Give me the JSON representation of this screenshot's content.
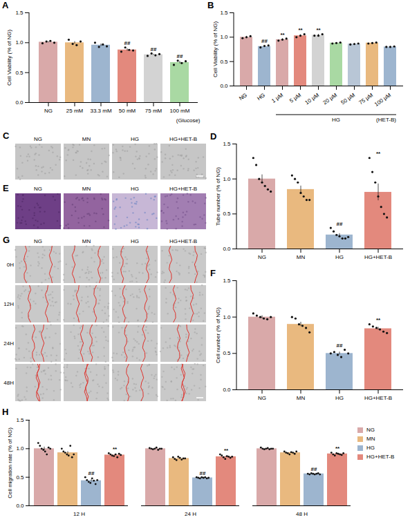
{
  "chart_data": [
    {
      "panel": "A",
      "type": "bar",
      "ylabel": "Cell Viability (% of NG)",
      "xlabel": "(Glucose)",
      "categories": [
        "NG",
        "25 mM",
        "33.3 mM",
        "50 mM",
        "75 mM",
        "100 mM"
      ],
      "values": [
        1.01,
        1.0,
        0.96,
        0.88,
        0.8,
        0.67
      ],
      "errors": [
        0.01,
        0.02,
        0.02,
        0.02,
        0.01,
        0.02
      ],
      "points": [
        [
          0.99,
          1.02,
          1.03,
          1.0
        ],
        [
          1.05,
          0.98,
          0.96,
          1.02
        ],
        [
          1.0,
          0.93,
          0.97,
          0.94
        ],
        [
          0.85,
          0.92,
          0.88,
          0.87
        ],
        [
          0.78,
          0.82,
          0.79,
          0.81
        ],
        [
          0.63,
          0.7,
          0.66,
          0.69
        ]
      ],
      "annotations": [
        null,
        null,
        null,
        "##",
        "##",
        "##"
      ],
      "colors": [
        "#d9a9a9",
        "#e9b97f",
        "#9db5cf",
        "#e3897d",
        "#d3d3d3",
        "#a9d9a3"
      ],
      "ylim": [
        0,
        1.5
      ],
      "yticks": [
        {
          "value": 0,
          "label": "0.0"
        },
        0.5,
        {
          "value": 1,
          "label": "1.0"
        },
        1.5
      ]
    },
    {
      "panel": "B",
      "type": "bar",
      "ylabel": "Cell Viability (% of NG)",
      "xlabel": "(HET-B)",
      "group": {
        "label": "HG",
        "from": "1 μM",
        "to": "100 μM"
      },
      "categories": [
        "NG",
        "HG",
        "1 μM",
        "5 μM",
        "10 μM",
        "20 μM",
        "50 μM",
        "75 μM",
        "100 μM"
      ],
      "values": [
        1.0,
        0.81,
        0.95,
        1.03,
        1.04,
        0.88,
        0.86,
        0.88,
        0.8
      ],
      "errors": [
        0.02,
        0.01,
        0.02,
        0.02,
        0.02,
        0.01,
        0.01,
        0.01,
        0.005
      ],
      "points": [
        [
          0.98,
          1.0,
          1.02
        ],
        [
          0.79,
          0.82,
          0.83
        ],
        [
          0.93,
          0.95,
          0.97
        ],
        [
          1.0,
          1.03,
          1.06
        ],
        [
          1.03,
          1.03,
          1.06
        ],
        [
          0.87,
          0.88,
          0.89
        ],
        [
          0.85,
          0.86,
          0.87
        ],
        [
          0.87,
          0.88,
          0.89
        ],
        [
          0.8,
          0.8,
          0.81
        ]
      ],
      "annotations": [
        null,
        "##",
        "**",
        "**",
        "**",
        null,
        null,
        null,
        null
      ],
      "colors": [
        "#d9a9a9",
        "#9db5cf",
        "#d9a9a9",
        "#e3897d",
        "#d3d3d3",
        "#a9d9a3",
        "#b8c6d6",
        "#e9b97f",
        "#9db5cf"
      ],
      "ylim": [
        0,
        1.5
      ],
      "yticks": [
        {
          "value": 0,
          "label": "0.0"
        },
        0.5,
        {
          "value": 1,
          "label": "1.0"
        },
        1.5
      ]
    },
    {
      "panel": "D",
      "type": "bar",
      "ylabel": "Tube number (% of NG)",
      "categories": [
        "NG",
        "MN",
        "HG",
        "HG+HET-B"
      ],
      "values": [
        1.0,
        0.85,
        0.2,
        0.81
      ],
      "errors": [
        0.06,
        0.05,
        0.02,
        0.12
      ],
      "points": [
        [
          1.3,
          1.2,
          1.0,
          0.95,
          0.9,
          0.85,
          0.82
        ],
        [
          1.05,
          1.0,
          0.95,
          0.8,
          0.75,
          0.7,
          0.7
        ],
        [
          0.3,
          0.25,
          0.2,
          0.18,
          0.15,
          0.15,
          0.17
        ],
        [
          1.3,
          1.1,
          0.95,
          0.75,
          0.6,
          0.5,
          0.45
        ]
      ],
      "annotations": [
        null,
        null,
        "##",
        "**"
      ],
      "colors": [
        "#d9a9a9",
        "#e9b97f",
        "#9db5cf",
        "#e3897d"
      ],
      "ylim": [
        0,
        1.5
      ],
      "yticks": [
        {
          "value": 0,
          "label": "0.0"
        },
        0.5,
        {
          "value": 1,
          "label": "1.0"
        },
        1.5
      ]
    },
    {
      "panel": "F",
      "type": "bar",
      "ylabel": "Cell number (% of NG)",
      "categories": [
        "NG",
        "MN",
        "HG",
        "HG+HET-B"
      ],
      "values": [
        1.0,
        0.9,
        0.5,
        0.84
      ],
      "errors": [
        0.02,
        0.03,
        0.02,
        0.02
      ],
      "points": [
        [
          1.05,
          1.02,
          1.0,
          0.98,
          0.97,
          1.0
        ],
        [
          1.0,
          0.98,
          0.9,
          0.88,
          0.85,
          0.79
        ],
        [
          0.5,
          0.52,
          0.48,
          0.45,
          0.55,
          0.5
        ],
        [
          0.9,
          0.87,
          0.85,
          0.83,
          0.8,
          0.78
        ]
      ],
      "annotations": [
        null,
        null,
        "##",
        "**"
      ],
      "colors": [
        "#d9a9a9",
        "#e9b97f",
        "#9db5cf",
        "#e3897d"
      ],
      "ylim": [
        0,
        1.5
      ],
      "yticks": [
        {
          "value": 0,
          "label": "0.0"
        },
        0.5,
        {
          "value": 1,
          "label": "1.0"
        },
        1.5
      ]
    },
    {
      "panel": "H",
      "type": "grouped_bar",
      "ylabel": "Cell migration rate (% of NG)",
      "legend": "right",
      "categories": [
        "12 H",
        "24 H",
        "48 H"
      ],
      "series": [
        {
          "name": "NG",
          "color": "#d9a9a9",
          "values": [
            1.0,
            1.0,
            1.0
          ],
          "errors": [
            0.03,
            0.005,
            0.004
          ],
          "points": [
            [
              1.1,
              1.05,
              1.0,
              0.98,
              0.95,
              0.9,
              1.02,
              1.0
            ],
            [
              1.01,
              1.0,
              0.99,
              1.0,
              1.02,
              0.98,
              1.0,
              1.0
            ],
            [
              1.02,
              1.0,
              0.99,
              1.0,
              1.01,
              0.99,
              1.0,
              1.0
            ]
          ],
          "annotations": [
            null,
            null,
            null
          ]
        },
        {
          "name": "MN",
          "color": "#e9b97f",
          "values": [
            0.93,
            0.83,
            0.93
          ],
          "errors": [
            0.02,
            0.01,
            0.006
          ],
          "points": [
            [
              1.0,
              0.95,
              0.93,
              0.9,
              0.88,
              1.05,
              0.85,
              0.9
            ],
            [
              0.85,
              0.82,
              0.8,
              0.86,
              0.84,
              0.81,
              0.83,
              0.83
            ],
            [
              0.95,
              0.93,
              0.92,
              0.9,
              0.94,
              0.93,
              0.91,
              0.95
            ]
          ],
          "annotations": [
            null,
            null,
            null
          ]
        },
        {
          "name": "HG",
          "color": "#9db5cf",
          "values": [
            0.44,
            0.49,
            0.56
          ],
          "errors": [
            0.02,
            0.003,
            0.003
          ],
          "points": [
            [
              0.5,
              0.45,
              0.42,
              0.4,
              0.48,
              0.44,
              0.38,
              0.45
            ],
            [
              0.5,
              0.49,
              0.48,
              0.5,
              0.49,
              0.5,
              0.48,
              0.49
            ],
            [
              0.56,
              0.55,
              0.57,
              0.56,
              0.55,
              0.56,
              0.57,
              0.55
            ]
          ],
          "annotations": [
            "##",
            "##",
            "##"
          ]
        },
        {
          "name": "HG+HET-B",
          "color": "#e3897d",
          "values": [
            0.89,
            0.86,
            0.91
          ],
          "errors": [
            0.01,
            0.01,
            0.006
          ],
          "points": [
            [
              0.92,
              0.9,
              0.88,
              0.87,
              0.9,
              0.85,
              0.91,
              0.89
            ],
            [
              0.9,
              0.88,
              0.85,
              0.82,
              0.87,
              0.86,
              0.84,
              0.86
            ],
            [
              0.93,
              0.9,
              0.88,
              0.92,
              0.91,
              0.9,
              0.89,
              0.92
            ]
          ],
          "annotations": [
            "**",
            "**",
            "**"
          ]
        }
      ],
      "ylim": [
        0,
        1.5
      ],
      "yticks": [
        {
          "value": 0,
          "label": "0.0"
        },
        0.5,
        {
          "value": 1,
          "label": "1.0"
        },
        1.5
      ]
    }
  ],
  "images": [
    {
      "panel": "C",
      "columns": [
        "NG",
        "MN",
        "HG",
        "HG+HET-B"
      ]
    },
    {
      "panel": "E",
      "columns": [
        "NG",
        "MN",
        "HG",
        "HG+HET-B"
      ]
    },
    {
      "panel": "G",
      "columns": [
        "NG",
        "MN",
        "HG",
        "HG+HET-B"
      ],
      "rows": [
        "0H",
        "12H",
        "24H",
        "48H"
      ]
    }
  ]
}
